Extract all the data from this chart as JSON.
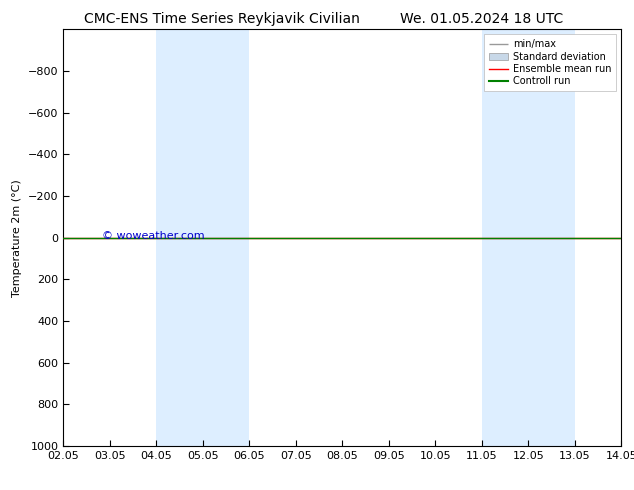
{
  "title_left": "CMC-ENS Time Series Reykjavik Civilian",
  "title_right": "We. 01.05.2024 18 UTC",
  "ylabel": "Temperature 2m (°C)",
  "watermark": "© woweather.com",
  "xlim": [
    2.05,
    14.05
  ],
  "ylim_bottom": 1000,
  "ylim_top": -1000,
  "yticks": [
    -800,
    -600,
    -400,
    -200,
    0,
    200,
    400,
    600,
    800,
    1000
  ],
  "xticks": [
    2.05,
    3.05,
    4.05,
    5.05,
    6.05,
    7.05,
    8.05,
    9.05,
    10.05,
    11.05,
    12.05,
    13.05,
    14.05
  ],
  "xticklabels": [
    "02.05",
    "03.05",
    "04.05",
    "05.05",
    "06.05",
    "07.05",
    "08.05",
    "09.05",
    "10.05",
    "11.05",
    "12.05",
    "13.05",
    "14.05"
  ],
  "shaded_regions": [
    [
      4.05,
      5.05
    ],
    [
      5.05,
      6.05
    ],
    [
      11.05,
      12.05
    ],
    [
      12.05,
      13.05
    ]
  ],
  "shade_color": "#ddeeff",
  "control_run_y": 0,
  "control_run_color": "#008000",
  "ensemble_mean_color": "#ff0000",
  "minmax_color": "#999999",
  "stddev_color": "#c8d8e8",
  "bg_color": "#ffffff",
  "legend_entries": [
    "min/max",
    "Standard deviation",
    "Ensemble mean run",
    "Controll run"
  ],
  "legend_colors": [
    "#999999",
    "#c8d8e8",
    "#ff0000",
    "#008000"
  ],
  "title_fontsize": 10,
  "axis_fontsize": 8,
  "watermark_color": "#0000cc",
  "watermark_fontsize": 8,
  "legend_fontsize": 7
}
